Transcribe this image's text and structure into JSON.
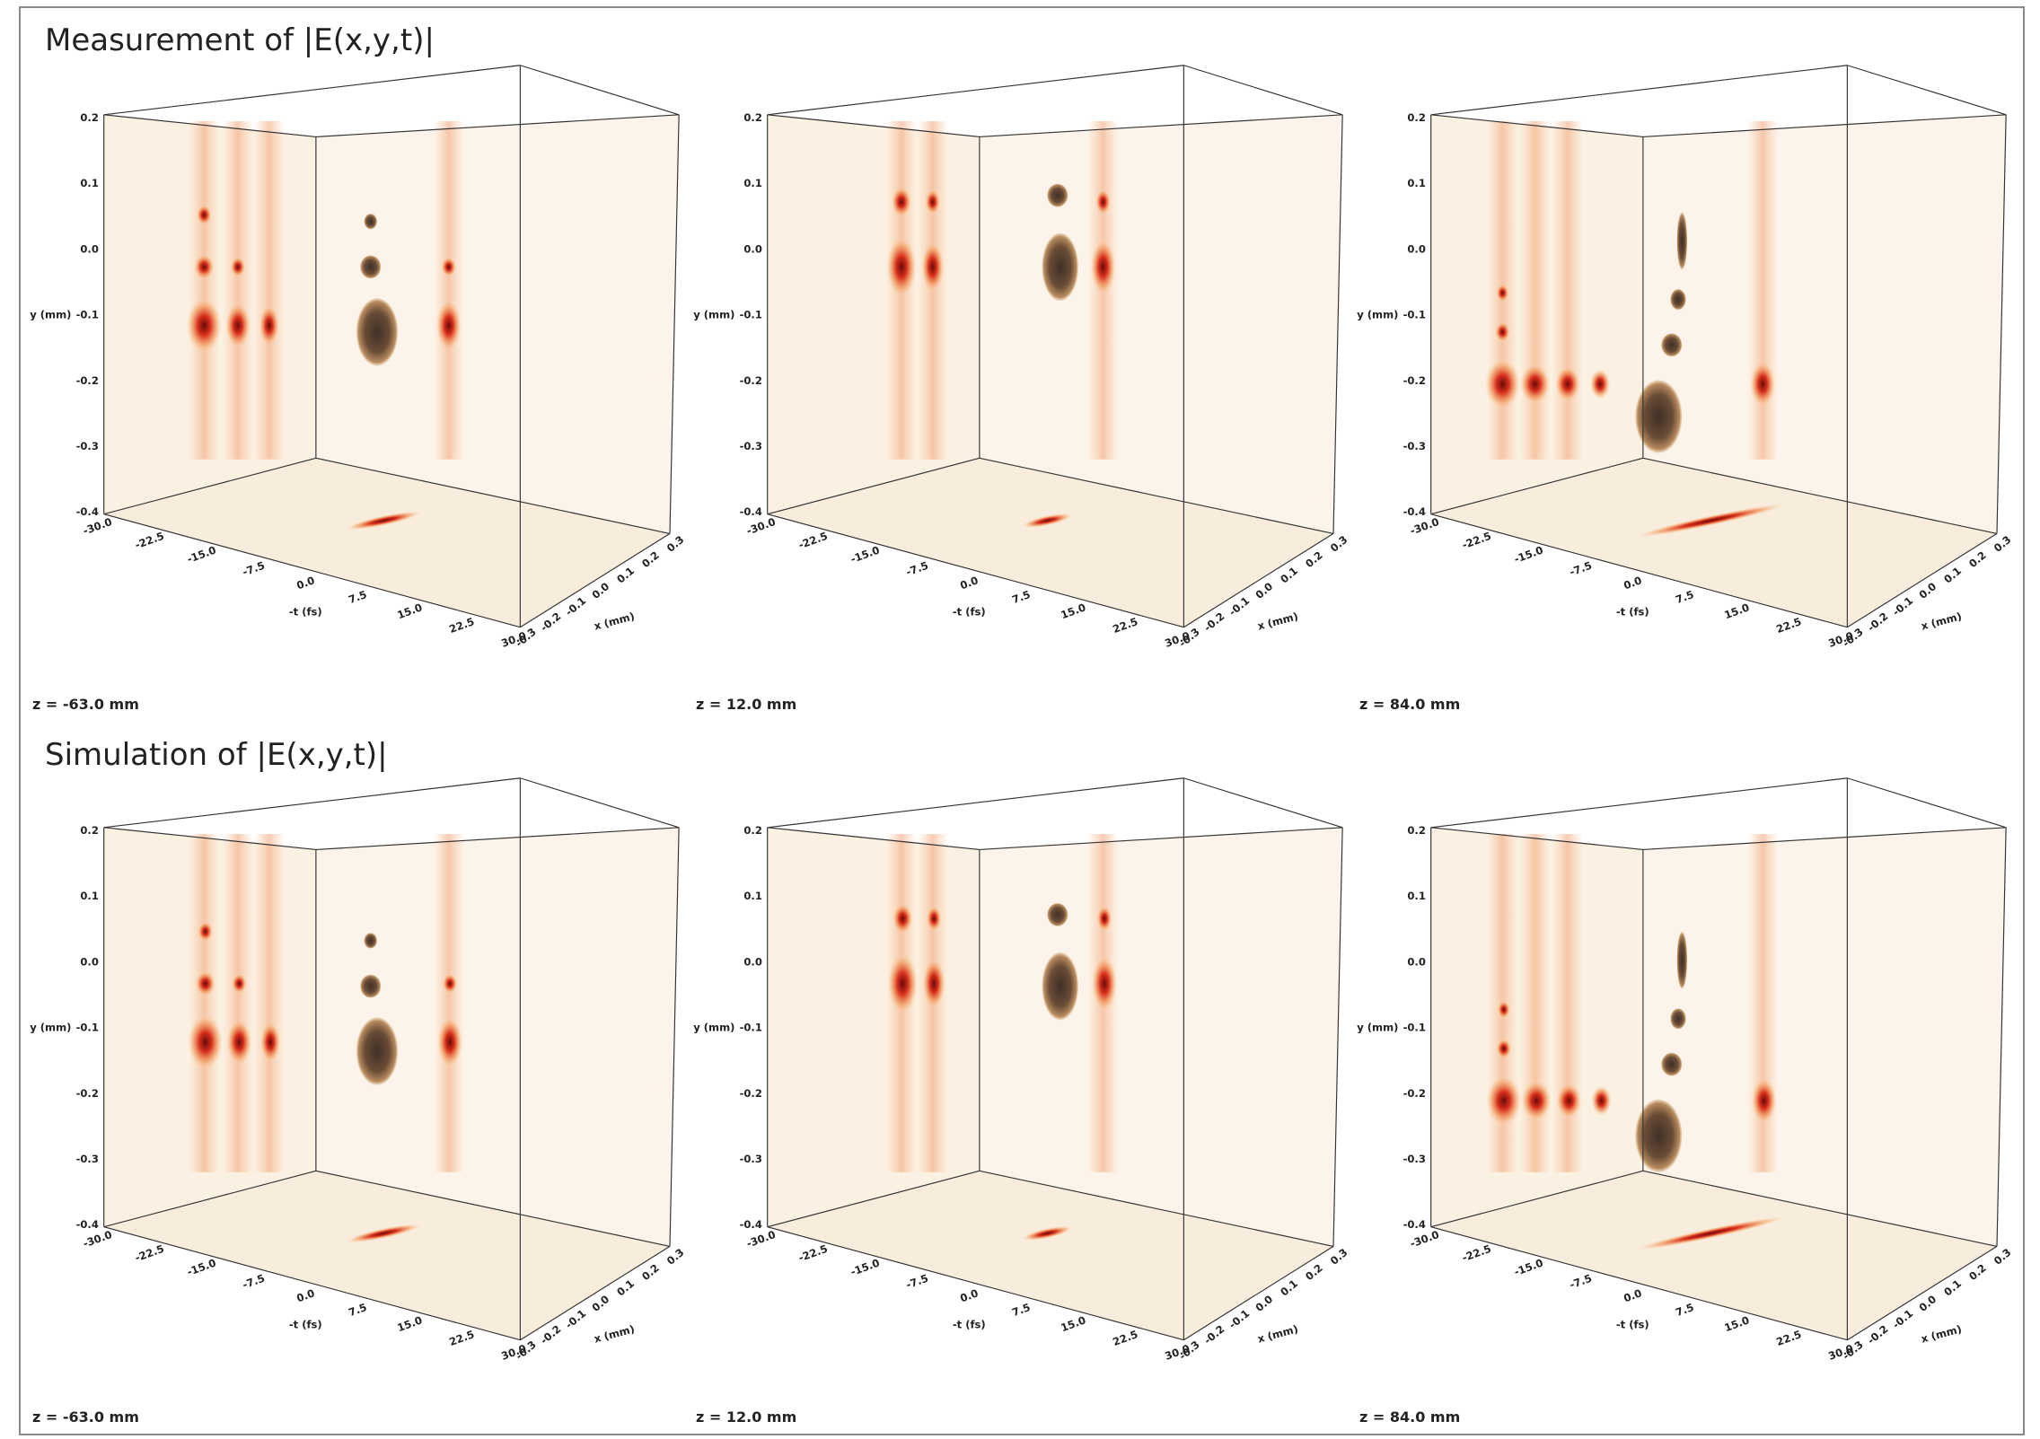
{
  "sections": [
    {
      "title": "Measurement of |E(x,y,t)|",
      "panels": [
        {
          "caption": "z = -63.0 mm"
        },
        {
          "caption": "z = 12.0 mm"
        },
        {
          "caption": "z = 84.0 mm"
        }
      ]
    },
    {
      "title": "Simulation of |E(x,y,t)|",
      "panels": [
        {
          "caption": "z = -63.0 mm"
        },
        {
          "caption": "z = 12.0 mm"
        },
        {
          "caption": "z = 84.0 mm"
        }
      ]
    }
  ],
  "axes": {
    "y_label": "y (mm)",
    "y_ticks": [
      "0.2",
      "0.1",
      "0.0",
      "-0.1",
      "-0.2",
      "-0.3",
      "-0.4"
    ],
    "t_label": "-t (fs)",
    "t_ticks": [
      "-30.0",
      "-22.5",
      "-15.0",
      "-7.5",
      "0.0",
      "7.5",
      "15.0",
      "22.5",
      "30.0"
    ],
    "x_label": "x (mm)",
    "x_ticks": [
      "-0.3",
      "-0.2",
      "-0.1",
      "0.0",
      "0.1",
      "0.2",
      "0.3"
    ]
  }
}
